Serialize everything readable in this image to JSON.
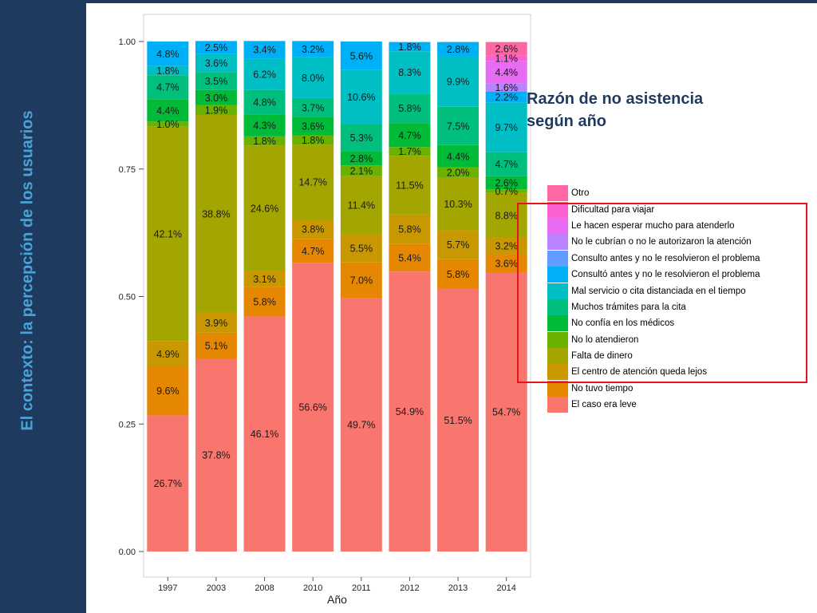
{
  "slide": {
    "side_title": "El contexto: la percepción de los usuarios",
    "overlay_title_line1": "Razón de no asistencia",
    "overlay_title_line2": "según año"
  },
  "chart_data": {
    "type": "bar",
    "stacked": true,
    "xlabel": "Año",
    "ylabel": "",
    "ylim": [
      0,
      1
    ],
    "yticks": [
      "0.00",
      "0.25",
      "0.50",
      "0.75",
      "1.00"
    ],
    "categories": [
      "1997",
      "2003",
      "2008",
      "2010",
      "2011",
      "2012",
      "2013",
      "2014"
    ],
    "legend_position": "right",
    "legend_order_top_to_bottom": [
      "Otro",
      "Dificultad para viajar",
      "Le hacen esperar mucho para atenderlo",
      "No le cubrían o no le autorizaron la atención",
      "Consulto antes y no le resolvieron el problema",
      "Consultó antes y no le resolvieron el problema",
      "Mal servicio o cita distanciada en el tiempo",
      "Muchos trámites para la cita",
      "No confía en los médicos",
      "No lo atendieron",
      "Falta de dinero",
      "El centro de atención queda lejos",
      "No tuvo tiempo",
      "El caso era leve"
    ],
    "series": [
      {
        "name": "El caso era leve",
        "color": "#f8766d",
        "values": [
          0.267,
          0.378,
          0.461,
          0.566,
          0.497,
          0.549,
          0.515,
          0.547
        ],
        "labels": [
          "26.7%",
          "37.8%",
          "46.1%",
          "56.6%",
          "49.7%",
          "54.9%",
          "51.5%",
          "54.7%"
        ]
      },
      {
        "name": "No tuvo tiempo",
        "color": "#e58700",
        "values": [
          0.096,
          0.051,
          0.058,
          0.047,
          0.07,
          0.054,
          0.058,
          0.036
        ],
        "labels": [
          "9.6%",
          "5.1%",
          "5.8%",
          "4.7%",
          "7.0%",
          "5.4%",
          "5.8%",
          "3.6%"
        ]
      },
      {
        "name": "El centro de atención queda lejos",
        "color": "#c99800",
        "values": [
          0.049,
          0.039,
          0.031,
          0.038,
          0.055,
          0.058,
          0.057,
          0.032
        ],
        "labels": [
          "4.9%",
          "3.9%",
          "3.1%",
          "3.8%",
          "5.5%",
          "5.8%",
          "5.7%",
          "3.2%"
        ]
      },
      {
        "name": "Falta de dinero",
        "color": "#a3a500",
        "values": [
          0.421,
          0.388,
          0.246,
          0.147,
          0.114,
          0.115,
          0.103,
          0.088
        ],
        "labels": [
          "42.1%",
          "38.8%",
          "24.6%",
          "14.7%",
          "11.4%",
          "11.5%",
          "10.3%",
          "8.8%"
        ]
      },
      {
        "name": "No lo atendieron",
        "color": "#6bb100",
        "values": [
          0.01,
          0.019,
          0.018,
          0.018,
          0.021,
          0.017,
          0.02,
          0.007
        ],
        "labels": [
          "1.0%",
          "1.9%",
          "1.8%",
          "1.8%",
          "2.1%",
          "1.7%",
          "2.0%",
          "0.7%"
        ]
      },
      {
        "name": "No confía en los médicos",
        "color": "#00ba38",
        "values": [
          0.044,
          0.03,
          0.043,
          0.036,
          0.028,
          0.047,
          0.044,
          0.026
        ],
        "labels": [
          "4.4%",
          "3.0%",
          "4.3%",
          "3.6%",
          "2.8%",
          "4.7%",
          "4.4%",
          "2.6%"
        ]
      },
      {
        "name": "Muchos trámites para la cita",
        "color": "#00bf7d",
        "values": [
          0.047,
          0.035,
          0.048,
          0.037,
          0.053,
          0.058,
          0.075,
          0.047
        ],
        "labels": [
          "4.7%",
          "3.5%",
          "4.8%",
          "3.7%",
          "5.3%",
          "5.8%",
          "7.5%",
          "4.7%"
        ]
      },
      {
        "name": "Mal servicio o cita distanciada en el tiempo",
        "color": "#00bfc4",
        "values": [
          0.018,
          0.036,
          0.062,
          0.08,
          0.106,
          0.083,
          0.099,
          0.097
        ],
        "labels": [
          "1.8%",
          "3.6%",
          "6.2%",
          "8.0%",
          "10.6%",
          "8.3%",
          "9.9%",
          "9.7%"
        ]
      },
      {
        "name": "Consultó antes y no le resolvieron el problema",
        "color": "#00b0f6",
        "values": [
          0.048,
          0.025,
          0.034,
          0.032,
          0.056,
          0.018,
          0.028,
          0.022
        ],
        "labels": [
          "4.8%",
          "2.5%",
          "3.4%",
          "3.2%",
          "5.6%",
          "1.8%",
          "2.8%",
          "2.2%"
        ]
      },
      {
        "name": "Consulto antes y no le resolvieron el problema",
        "color": "#619cff",
        "values": [
          0,
          0,
          0,
          0,
          0,
          0,
          0,
          0
        ],
        "labels": [
          "",
          "",
          "",
          "",
          "",
          "",
          "",
          ""
        ]
      },
      {
        "name": "No le cubrían o no le autorizaron la atención",
        "color": "#b983ff",
        "values": [
          0,
          0,
          0,
          0,
          0,
          0,
          0,
          0.016
        ],
        "labels": [
          "",
          "",
          "",
          "",
          "",
          "",
          "",
          "1.6%"
        ]
      },
      {
        "name": "Le hacen esperar mucho para atenderlo",
        "color": "#e76bf3",
        "values": [
          0,
          0,
          0,
          0,
          0,
          0,
          0,
          0.044
        ],
        "labels": [
          "",
          "",
          "",
          "",
          "",
          "",
          "",
          "4.4%"
        ]
      },
      {
        "name": "Dificultad para viajar",
        "color": "#fd61d1",
        "values": [
          0,
          0,
          0,
          0,
          0,
          0,
          0,
          0.011
        ],
        "labels": [
          "",
          "",
          "",
          "",
          "",
          "",
          "",
          "1.1%"
        ]
      },
      {
        "name": "Otro",
        "color": "#ff67a4",
        "values": [
          0,
          0,
          0,
          0,
          0,
          0,
          0,
          0.026
        ],
        "labels": [
          "",
          "",
          "",
          "",
          "",
          "",
          "",
          "2.6%"
        ]
      }
    ]
  }
}
